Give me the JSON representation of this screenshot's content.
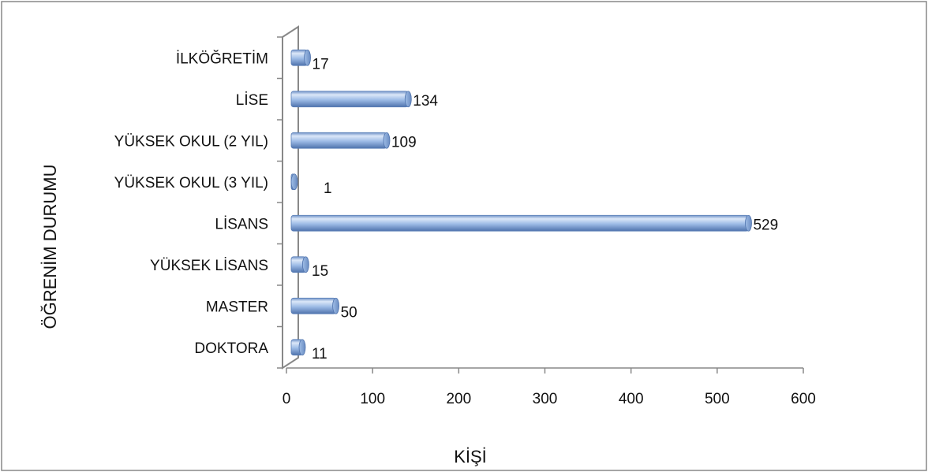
{
  "chart_data": {
    "type": "bar",
    "orientation": "horizontal",
    "title": "",
    "xlabel": "KİŞİ",
    "ylabel": "ÖĞRENİM DURUMU",
    "categories": [
      "İLKÖĞRETİM",
      "LİSE",
      "YÜKSEK OKUL (2 YIL)",
      "YÜKSEK OKUL (3 YIL)",
      "LİSANS",
      "YÜKSEK LİSANS",
      "MASTER",
      "DOKTORA"
    ],
    "values": [
      17,
      134,
      109,
      1,
      529,
      15,
      50,
      11
    ],
    "data_labels": [
      "17",
      "134",
      "109",
      "1",
      "529",
      "15",
      "50",
      "11"
    ],
    "xlim": [
      0,
      600
    ],
    "x_ticks": [
      0,
      100,
      200,
      300,
      400,
      500,
      600
    ],
    "x_tick_labels": [
      "0",
      "100",
      "200",
      "300",
      "400",
      "500",
      "600"
    ],
    "grid": false,
    "legend": "none",
    "style": "3d-cylinder",
    "colors": {
      "bar_light": "#d9e6f8",
      "bar_mid": "#9ab9e5",
      "bar_dark": "#5a7fb8",
      "axis": "#888888",
      "text": "#111111"
    }
  }
}
